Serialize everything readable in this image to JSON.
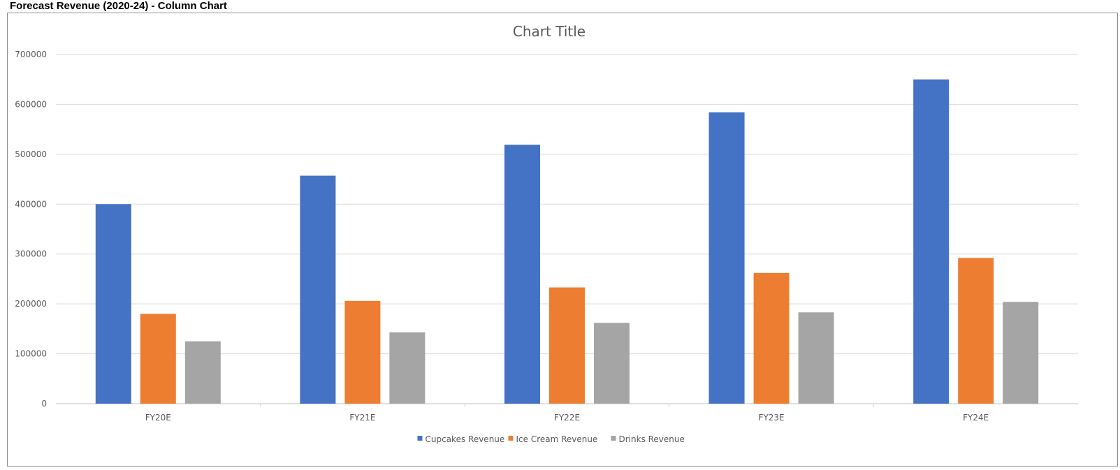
{
  "sheet": {
    "heading": "Forecast Revenue (2020-24) - Column Chart"
  },
  "chart_data": {
    "type": "bar",
    "title": "Chart Title",
    "xlabel": "",
    "ylabel": "",
    "categories": [
      "FY20E",
      "FY21E",
      "FY22E",
      "FY23E",
      "FY24E"
    ],
    "series": [
      {
        "name": "Cupcakes Revenue",
        "color": "#4472C4",
        "values": [
          400000,
          457000,
          519000,
          584000,
          650000
        ]
      },
      {
        "name": "Ice Cream Revenue",
        "color": "#ED7D31",
        "values": [
          180000,
          206000,
          233000,
          262000,
          292000
        ]
      },
      {
        "name": "Drinks Revenue",
        "color": "#A5A5A5",
        "values": [
          125000,
          143000,
          162000,
          183000,
          204000
        ]
      }
    ],
    "ylim": [
      0,
      700000
    ],
    "yticks": [
      "0",
      "100000",
      "200000",
      "300000",
      "400000",
      "500000",
      "600000",
      "700000"
    ],
    "grid": true,
    "legend_position": "bottom"
  }
}
